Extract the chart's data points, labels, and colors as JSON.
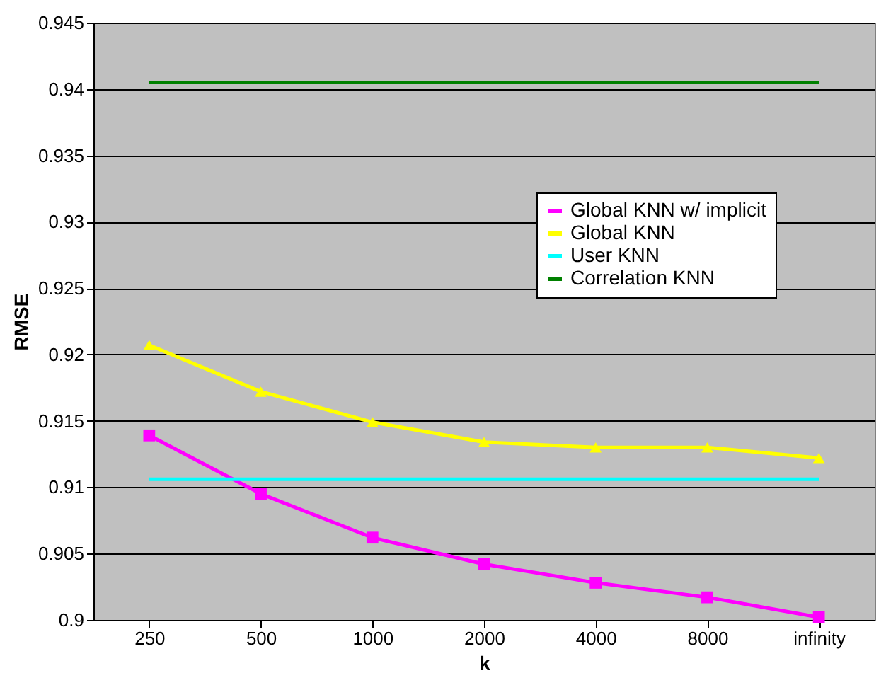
{
  "chart_data": {
    "type": "line",
    "xlabel": "k",
    "ylabel": "RMSE",
    "categories": [
      "250",
      "500",
      "1000",
      "2000",
      "4000",
      "8000",
      "infinity"
    ],
    "ylim": [
      0.9,
      0.945
    ],
    "yticks": [
      0.9,
      0.905,
      0.91,
      0.915,
      0.92,
      0.925,
      0.93,
      0.935,
      0.94,
      0.945
    ],
    "grid": "y",
    "legend": "right",
    "series": [
      {
        "name": "Global KNN w/ implicit",
        "color": "#ff00ff",
        "marker": "square",
        "values": [
          0.9139,
          0.9095,
          0.9062,
          0.9042,
          0.9028,
          0.9017,
          0.9002
        ]
      },
      {
        "name": "Global KNN",
        "color": "#ffff00",
        "marker": "triangle",
        "values": [
          0.9207,
          0.9172,
          0.9149,
          0.9134,
          0.913,
          0.913,
          0.9122
        ]
      },
      {
        "name": "User KNN",
        "color": "#00ffff",
        "marker": "none",
        "values": [
          0.9106,
          0.9106,
          0.9106,
          0.9106,
          0.9106,
          0.9106,
          0.9106
        ]
      },
      {
        "name": "Correlation KNN",
        "color": "#008000",
        "marker": "none",
        "values": [
          0.9405,
          0.9405,
          0.9405,
          0.9405,
          0.9405,
          0.9405,
          0.9405
        ]
      }
    ]
  }
}
